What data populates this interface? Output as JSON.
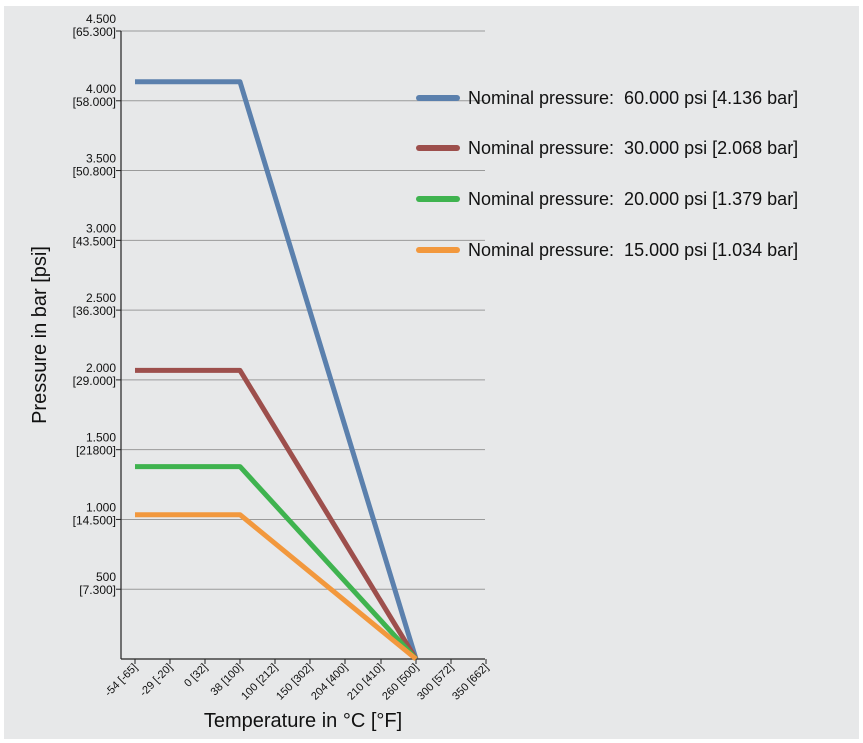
{
  "chart_data": {
    "type": "line",
    "xlabel": "Temperature in °C [°F]",
    "ylabel": "Pressure in bar [psi]",
    "x_ticks": [
      {
        "value": -54,
        "label": "-54 [-65]"
      },
      {
        "value": -29,
        "label": "-29 [-20]"
      },
      {
        "value": 0,
        "label": "0 [32]"
      },
      {
        "value": 38,
        "label": "38 [100]"
      },
      {
        "value": 100,
        "label": "100 [212]"
      },
      {
        "value": 150,
        "label": "150 [302]"
      },
      {
        "value": 204,
        "label": "204 [400]"
      },
      {
        "value": 210,
        "label": "210 [410]"
      },
      {
        "value": 260,
        "label": "260 [500]"
      },
      {
        "value": 300,
        "label": "300 [572]"
      },
      {
        "value": 350,
        "label": "350 [662]"
      }
    ],
    "y_ticks": [
      {
        "value": 500,
        "line1": "500",
        "line2": "[7.300]"
      },
      {
        "value": 1000,
        "line1": "1.000",
        "line2": "[14.500]"
      },
      {
        "value": 1500,
        "line1": "1.500",
        "line2": "[21800]"
      },
      {
        "value": 2000,
        "line1": "2.000",
        "line2": "[29.000]"
      },
      {
        "value": 2500,
        "line1": "2.500",
        "line2": "[36.300]"
      },
      {
        "value": 3000,
        "line1": "3.000",
        "line2": "[43.500]"
      },
      {
        "value": 3500,
        "line1": "3.500",
        "line2": "[50.800]"
      },
      {
        "value": 4000,
        "line1": "4.000",
        "line2": "[58.000]"
      },
      {
        "value": 4500,
        "line1": "4.500",
        "line2": "[65.300]"
      }
    ],
    "ylim": [
      0,
      4500
    ],
    "grid": true,
    "legend_position": "right",
    "series": [
      {
        "name": "Nominal pressure:  60.000 psi [4.136 bar]",
        "color": "#5b80ad",
        "points": [
          {
            "x": -54,
            "y": 4136
          },
          {
            "x": 38,
            "y": 4136
          },
          {
            "x": 260,
            "y": 0
          }
        ]
      },
      {
        "name": "Nominal pressure:  30.000 psi [2.068 bar]",
        "color": "#9d4f4c",
        "points": [
          {
            "x": -54,
            "y": 2068
          },
          {
            "x": 38,
            "y": 2068
          },
          {
            "x": 260,
            "y": 0
          }
        ]
      },
      {
        "name": "Nominal pressure:  20.000 psi [1.379 bar]",
        "color": "#3fb34f",
        "points": [
          {
            "x": -54,
            "y": 1379
          },
          {
            "x": 38,
            "y": 1379
          },
          {
            "x": 260,
            "y": 0
          }
        ]
      },
      {
        "name": "Nominal pressure:  15.000 psi [1.034 bar]",
        "color": "#f2983d",
        "points": [
          {
            "x": -54,
            "y": 1034
          },
          {
            "x": 38,
            "y": 1034
          },
          {
            "x": 260,
            "y": 0
          }
        ]
      }
    ]
  }
}
